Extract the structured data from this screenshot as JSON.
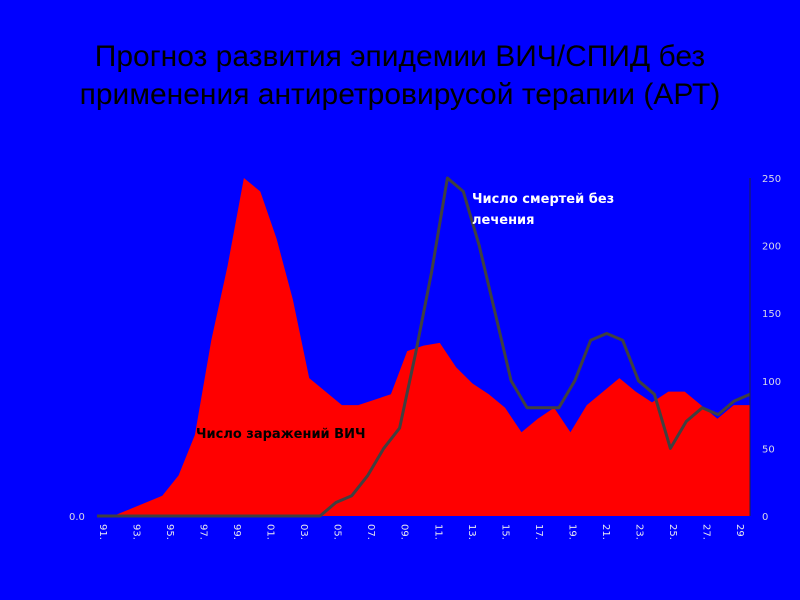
{
  "title": {
    "line1": "Прогноз развития эпидемии ВИЧ/СПИД без",
    "line2": "применения антиретровирусой терапии (АРТ)"
  },
  "chart_data": {
    "type": "area",
    "x_tick_labels": [
      "91.",
      "93.",
      "95.",
      "97.",
      "99.",
      "01.",
      "03.",
      "05.",
      "07.",
      "09.",
      "11.",
      "13.",
      "15.",
      "17.",
      "19.",
      "21.",
      "23.",
      "25.",
      "27.",
      "29"
    ],
    "y_right": {
      "ticks": [
        "0",
        "50",
        "100",
        "150",
        "200",
        "250"
      ],
      "range": [
        0,
        250
      ]
    },
    "y_left_tick": "0.0",
    "series": [
      {
        "name": "Число заражений ВИЧ",
        "type": "area",
        "color": "#ff0000",
        "values": [
          0,
          0,
          5,
          10,
          15,
          30,
          60,
          130,
          185,
          250,
          240,
          205,
          160,
          102,
          92,
          82,
          82,
          86,
          90,
          122,
          126,
          128,
          110,
          98,
          90,
          80,
          62,
          72,
          80,
          62,
          82,
          92,
          102,
          92,
          84,
          92,
          92,
          82,
          72,
          82,
          82
        ]
      },
      {
        "name": "Число смертей без лечения",
        "type": "line",
        "color": "#404040",
        "values": [
          0,
          0,
          0,
          0,
          0,
          0,
          0,
          0,
          0,
          0,
          0,
          0,
          0,
          0,
          0,
          10,
          15,
          30,
          50,
          65,
          120,
          180,
          250,
          240,
          200,
          150,
          100,
          80,
          80,
          80,
          100,
          130,
          135,
          130,
          100,
          90,
          50,
          70,
          80,
          75,
          85,
          90
        ]
      }
    ],
    "annotations": [
      {
        "series": 0,
        "text": "Число заражений ВИЧ"
      },
      {
        "series": 1,
        "text": [
          "Число смертей без",
          "лечения"
        ]
      }
    ],
    "grid": false,
    "legend": "none"
  }
}
